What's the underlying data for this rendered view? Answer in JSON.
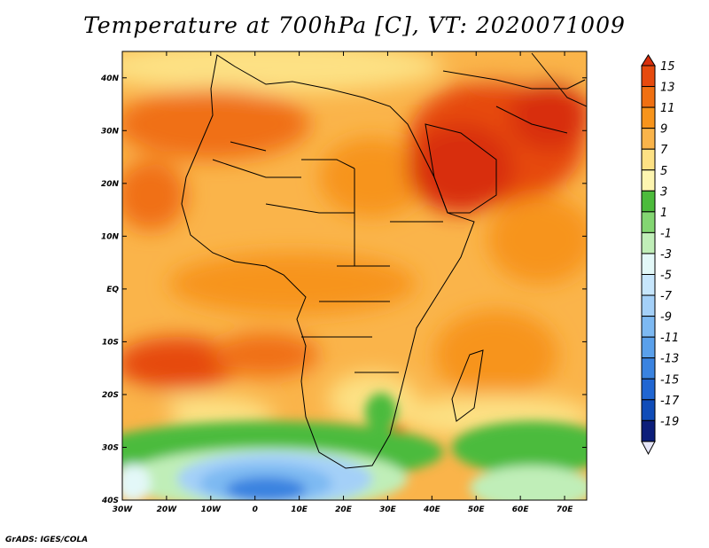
{
  "title": "Temperature at 700hPa [C], VT: 2020071009",
  "footer": "GrADS: IGES/COLA",
  "map": {
    "lat_labels": [
      "40N",
      "30N",
      "20N",
      "10N",
      "EQ",
      "10S",
      "20S",
      "30S",
      "40S"
    ],
    "lon_labels": [
      "30W",
      "20W",
      "10W",
      "0",
      "10E",
      "20E",
      "30E",
      "40E",
      "50E",
      "60E",
      "70E"
    ],
    "lat_range": [
      -40,
      45
    ],
    "lon_range": [
      -30,
      75
    ]
  },
  "colorbar": {
    "labels": [
      "15",
      "13",
      "11",
      "9",
      "7",
      "5",
      "3",
      "1",
      "-1",
      "-3",
      "-5",
      "-7",
      "-9",
      "-11",
      "-13",
      "-15",
      "-17",
      "-19"
    ],
    "colors": [
      "#d82f0c",
      "#e64a0e",
      "#f07012",
      "#f7941c",
      "#fab44a",
      "#fde184",
      "#fdf5b0",
      "#4cbb3c",
      "#83d672",
      "#c0eeb8",
      "#e3f8f8",
      "#c7e6fc",
      "#a4d0f8",
      "#7db9f2",
      "#5aa0eb",
      "#3a83e0",
      "#2066d2",
      "#104cb8",
      "#0c1e7a",
      "#e6e6f8"
    ]
  }
}
